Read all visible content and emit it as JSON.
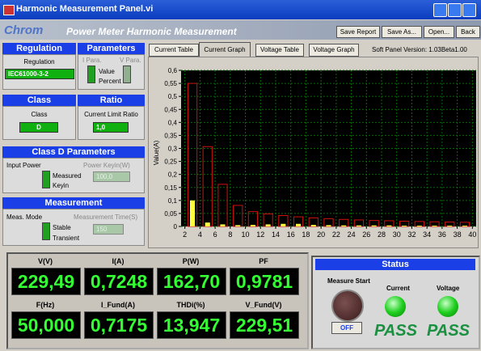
{
  "window": {
    "title": "Harmonic Measurement Panel.vi"
  },
  "header": {
    "brand": "Chrom",
    "title": "Power Meter Harmonic Measurement",
    "buttons": [
      "Save Report",
      "Save As...",
      "Open...",
      "Back"
    ]
  },
  "regulation": {
    "header": "Regulation",
    "label": "Regulation",
    "value": "IEC61000-3-2"
  },
  "parameters": {
    "header": "Parameters",
    "i_para": "I Para.",
    "v_para": "V Para.",
    "option_on": "Value",
    "option_off": "Percent"
  },
  "class": {
    "header": "Class",
    "label": "Class",
    "value": "D"
  },
  "ratio": {
    "header": "Ratio",
    "label": "Current Limit Ratio",
    "value": "1,0"
  },
  "class_d": {
    "header": "Class D Parameters",
    "input_label": "Input Power",
    "keyin_label": "Power Keyin(W)",
    "option_on": "Measured",
    "option_off": "Keyin",
    "keyin_value": "100,0"
  },
  "measurement": {
    "header": "Measurement",
    "mode_label": "Meas. Mode",
    "time_label": "Measurement Time(S)",
    "option_on": "Stable",
    "option_off": "Transient",
    "time_value": "150"
  },
  "tabs": [
    "Current Table",
    "Current Graph",
    "Voltage Table",
    "Voltage Graph"
  ],
  "version": "Soft Panel Version: 1.03Beta1.00",
  "chart_data": {
    "type": "bar",
    "y_label": "Value(A)",
    "x": [
      3,
      5,
      7,
      9,
      11,
      13,
      15,
      17,
      19,
      21,
      23,
      25,
      27,
      29,
      31,
      33,
      35,
      37,
      39
    ],
    "series": [
      {
        "color": "#d01010",
        "fill": false,
        "values": [
          0.55,
          0.307,
          0.162,
          0.081,
          0.057,
          0.048,
          0.042,
          0.037,
          0.033,
          0.03,
          0.027,
          0.025,
          0.023,
          0.022,
          0.02,
          0.019,
          0.018,
          0.017,
          0.016
        ]
      },
      {
        "color": "#ffff40",
        "fill": true,
        "values": [
          0.1,
          0.015,
          0.008,
          0.005,
          0.006,
          0.008,
          0.01,
          0.01,
          0.006,
          0.005,
          0.004,
          0.004,
          0.004,
          0.004,
          0.003,
          0.003,
          0.003,
          0.003,
          0.003
        ]
      }
    ],
    "xlim": [
      1.5,
      40.5
    ],
    "xticks": [
      2,
      4,
      6,
      8,
      10,
      12,
      14,
      16,
      18,
      20,
      22,
      24,
      26,
      28,
      30,
      32,
      34,
      36,
      38,
      40
    ],
    "ylim": [
      0,
      0.6
    ],
    "yticks": [
      0,
      {
        "value": 0.05,
        "label": "0,05"
      },
      {
        "value": 0.1,
        "label": "0,1"
      },
      {
        "value": 0.15,
        "label": "0,15"
      },
      {
        "value": 0.2,
        "label": "0,2"
      },
      {
        "value": 0.25,
        "label": "0,25"
      },
      {
        "value": 0.3,
        "label": "0,3"
      },
      {
        "value": 0.35,
        "label": "0,35"
      },
      {
        "value": 0.4,
        "label": "0,4"
      },
      {
        "value": 0.45,
        "label": "0,45"
      },
      {
        "value": 0.5,
        "label": "0,5"
      },
      {
        "value": 0.55,
        "label": "0,55"
      },
      {
        "value": 0.6,
        "label": "0,6"
      }
    ],
    "grid": true
  },
  "readouts": [
    {
      "label": "V(V)",
      "value": "229,49"
    },
    {
      "label": "I(A)",
      "value": "0,7248"
    },
    {
      "label": "P(W)",
      "value": "162,70"
    },
    {
      "label": "PF",
      "value": "0,9781"
    },
    {
      "label": "F(Hz)",
      "value": "50,000"
    },
    {
      "label": "I_Fund(A)",
      "value": "0,7175"
    },
    {
      "label": "THDi(%)",
      "value": "13,947"
    },
    {
      "label": "V_Fund(V)",
      "value": "229,51"
    }
  ],
  "status": {
    "header": "Status",
    "start_label": "Measure Start",
    "button": "OFF",
    "current_label": "Current",
    "voltage_label": "Voltage",
    "current_result": "PASS",
    "voltage_result": "PASS"
  }
}
